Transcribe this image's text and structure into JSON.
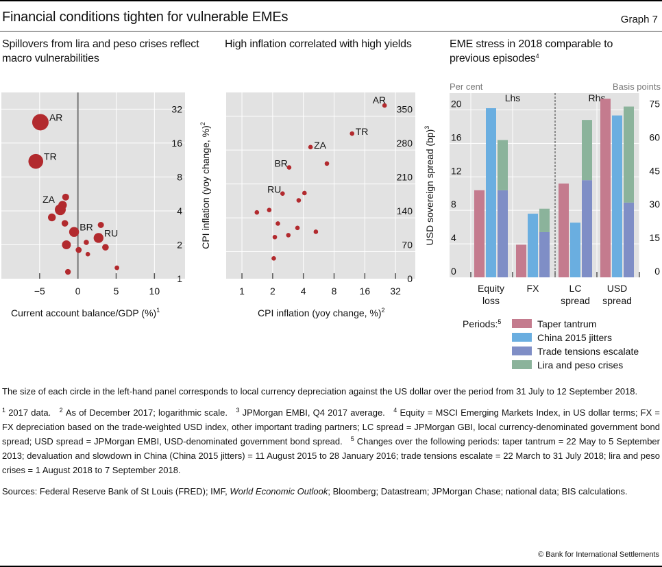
{
  "header": {
    "title": "Financial conditions tighten for vulnerable EMEs",
    "graph_number": "Graph 7"
  },
  "panels": {
    "p1_title": "Spillovers from lira and peso crises reflect macro vulnerabilities",
    "p2_title": "High inflation correlated with high yields",
    "p3_title": "EME stress in 2018 comparable to previous episodes",
    "p3_title_sup": "4"
  },
  "chart_data": [
    {
      "type": "scatter",
      "title": "Spillovers from lira and peso crises reflect macro vulnerabilities",
      "xlabel": "Current account balance/GDP (%)",
      "xlabel_sup": "1",
      "ylabel": "CPI inflation (yoy change, %)",
      "ylabel_sup": "2",
      "y_scale": "log2",
      "xlim": [
        -10,
        14
      ],
      "ylim": [
        1,
        45
      ],
      "x_ticks": [
        "-5",
        "0",
        "5",
        "10"
      ],
      "x_tick_values": [
        -5,
        0,
        5,
        10
      ],
      "y_ticks": [
        "1",
        "2",
        "4",
        "8",
        "16",
        "32"
      ],
      "y_tick_values": [
        1,
        2,
        4,
        8,
        16,
        32
      ],
      "grid": true,
      "size_encoding": "local currency depreciation vs USD (relative)",
      "points": [
        {
          "label": "AR",
          "x": -4.9,
          "y": 24.5,
          "size": 1.0
        },
        {
          "label": "TR",
          "x": -5.5,
          "y": 11.0,
          "size": 0.88
        },
        {
          "label": "",
          "x": -1.6,
          "y": 5.3,
          "size": 0.3
        },
        {
          "label": "",
          "x": -2.0,
          "y": 4.5,
          "size": 0.42
        },
        {
          "label": "ZA",
          "x": -2.3,
          "y": 4.1,
          "size": 0.6
        },
        {
          "label": "",
          "x": -3.4,
          "y": 3.5,
          "size": 0.37
        },
        {
          "label": "",
          "x": -1.7,
          "y": 3.1,
          "size": 0.28
        },
        {
          "label": "",
          "x": 3.0,
          "y": 3.0,
          "size": 0.25
        },
        {
          "label": "BR",
          "x": -0.5,
          "y": 2.6,
          "size": 0.52
        },
        {
          "label": "RU",
          "x": 2.7,
          "y": 2.3,
          "size": 0.52
        },
        {
          "label": "",
          "x": -1.5,
          "y": 2.0,
          "size": 0.45
        },
        {
          "label": "",
          "x": 1.1,
          "y": 2.1,
          "size": 0.18
        },
        {
          "label": "",
          "x": 3.6,
          "y": 1.9,
          "size": 0.28
        },
        {
          "label": "",
          "x": 0.1,
          "y": 1.8,
          "size": 0.24
        },
        {
          "label": "",
          "x": 1.3,
          "y": 1.65,
          "size": 0.13
        },
        {
          "label": "",
          "x": 5.1,
          "y": 1.25,
          "size": 0.14
        },
        {
          "label": "",
          "x": -1.3,
          "y": 1.15,
          "size": 0.22
        }
      ]
    },
    {
      "type": "scatter",
      "title": "High inflation correlated with high yields",
      "xlabel": "CPI inflation (yoy change, %)",
      "xlabel_sup": "2",
      "ylabel": "USD sovereign spread (bp)",
      "ylabel_sup": "3",
      "x_scale": "log2",
      "xlim": [
        0.7,
        50
      ],
      "ylim": [
        0,
        385
      ],
      "x_ticks": [
        "1",
        "2",
        "4",
        "8",
        "16",
        "32"
      ],
      "x_tick_values": [
        1,
        2,
        4,
        8,
        16,
        32
      ],
      "y_ticks": [
        "0",
        "70",
        "140",
        "210",
        "280",
        "350"
      ],
      "y_tick_values": [
        0,
        70,
        140,
        210,
        280,
        350
      ],
      "grid": true,
      "points": [
        {
          "label": "AR",
          "x": 25.0,
          "y": 358
        },
        {
          "label": "TR",
          "x": 12.0,
          "y": 300
        },
        {
          "label": "ZA",
          "x": 4.7,
          "y": 272
        },
        {
          "label": "",
          "x": 6.8,
          "y": 238
        },
        {
          "label": "BR",
          "x": 2.9,
          "y": 230
        },
        {
          "label": "RU",
          "x": 2.5,
          "y": 176
        },
        {
          "label": "",
          "x": 4.1,
          "y": 177
        },
        {
          "label": "",
          "x": 3.6,
          "y": 162
        },
        {
          "label": "",
          "x": 1.4,
          "y": 137
        },
        {
          "label": "",
          "x": 1.85,
          "y": 142
        },
        {
          "label": "",
          "x": 2.25,
          "y": 114
        },
        {
          "label": "",
          "x": 3.5,
          "y": 105
        },
        {
          "label": "",
          "x": 5.3,
          "y": 97
        },
        {
          "label": "",
          "x": 2.1,
          "y": 86
        },
        {
          "label": "",
          "x": 2.85,
          "y": 90
        },
        {
          "label": "",
          "x": 2.05,
          "y": 42
        }
      ]
    },
    {
      "type": "bar",
      "title": "EME stress in 2018 comparable to previous episodes",
      "left_unit": "Per cent",
      "right_unit": "Basis points",
      "left_axis_label": "Lhs",
      "right_axis_label": "Rhs",
      "categories": [
        "Equity loss",
        "FX",
        "LC spread",
        "USD spread"
      ],
      "category_axis": [
        "lhs",
        "lhs",
        "rhs",
        "rhs"
      ],
      "lhs_ylim": [
        0,
        22
      ],
      "rhs_ylim": [
        0,
        82.5
      ],
      "lhs_ticks": [
        "0",
        "4",
        "8",
        "12",
        "16",
        "20"
      ],
      "lhs_tick_values": [
        0,
        4,
        8,
        12,
        16,
        20
      ],
      "rhs_ticks": [
        "0",
        "15",
        "30",
        "45",
        "60",
        "75"
      ],
      "rhs_tick_values": [
        0,
        15,
        30,
        45,
        60,
        75
      ],
      "legend_title": "Periods:",
      "legend_title_sup": "5",
      "legend_placement": "bottom",
      "series": [
        {
          "name": "Taper tantrum",
          "color": "#c47b8e",
          "values": [
            10.4,
            3.9,
            42,
            80
          ]
        },
        {
          "name": "China 2015 jitters",
          "color": "#6aaee0",
          "values": [
            20.2,
            7.6,
            24.5,
            72.5
          ]
        },
        {
          "name": "Trade tensions escalate",
          "color": "#7f8ec6",
          "values": [
            10.4,
            5.4,
            43.5,
            33.5
          ]
        },
        {
          "name": "Lira and peso crises",
          "color": "#8bb39b",
          "values": [
            6.0,
            2.8,
            27,
            43
          ]
        }
      ],
      "stacking": "Trade tensions escalate and Lira and peso crises are stacked in the third bar of each group"
    }
  ],
  "notes": {
    "circle_note": "The size of each circle in the left-hand panel corresponds to local currency depreciation against the US dollar over the period from 31 July to 12 September 2018.",
    "fn1": "2017 data.",
    "fn2": "As of December 2017; logarithmic scale.",
    "fn3": "JPMorgan EMBI, Q4 2017 average.",
    "fn4": "Equity = MSCI Emerging Markets Index, in US dollar terms; FX = FX depreciation based on the trade-weighted USD index, other important trading partners; LC spread = JPMorgan GBI, local currency-denominated government bond spread; USD spread = JPMorgan EMBI, USD-denominated government bond spread.",
    "fn5": "Changes over the following periods: taper tantrum = 22 May to 5 September 2013; devaluation and slowdown in China (China 2015 jitters) = 11 August 2015 to 28 January 2016; trade tensions escalate = 22 March to 31 July 2018; lira and peso crises = 1 August 2018 to 7 September 2018.",
    "sources_prefix": "Sources: Federal Reserve Bank of St Louis (FRED); IMF, ",
    "sources_italic": "World Economic Outlook",
    "sources_suffix": "; Bloomberg; Datastream; JPMorgan Chase; national data; BIS calculations.",
    "copyright": "© Bank for International Settlements"
  },
  "colors": {
    "plot_bg": "#e2e2e2",
    "grid": "#ffffff",
    "point": "#b22a2e",
    "zero_line": "#777777"
  }
}
